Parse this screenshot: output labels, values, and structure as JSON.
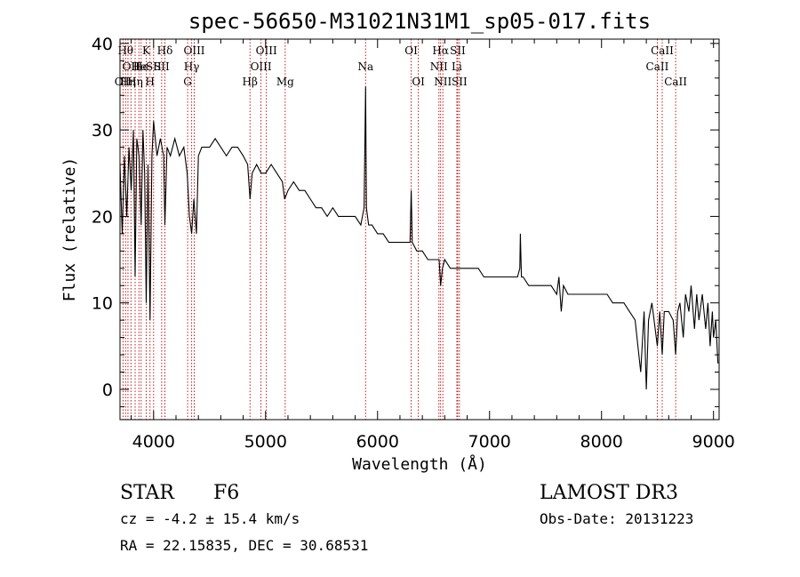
{
  "chart_data": {
    "type": "line",
    "title": "spec-56650-M31021N31M1_sp05-017.fits",
    "xlabel": "Wavelength (Å)",
    "ylabel": "Flux (relative)",
    "xlim": [
      3700,
      9050
    ],
    "ylim": [
      -3.5,
      40.5
    ],
    "xticks": [
      4000,
      5000,
      6000,
      7000,
      8000,
      9000
    ],
    "yticks": [
      0,
      10,
      20,
      30,
      40
    ],
    "series": [
      {
        "name": "spectrum",
        "points": [
          [
            3700,
            26
          ],
          [
            3720,
            18
          ],
          [
            3740,
            27
          ],
          [
            3760,
            20
          ],
          [
            3780,
            28
          ],
          [
            3800,
            23
          ],
          [
            3820,
            30
          ],
          [
            3835,
            13
          ],
          [
            3850,
            29
          ],
          [
            3870,
            27
          ],
          [
            3889,
            19
          ],
          [
            3905,
            30
          ],
          [
            3920,
            25
          ],
          [
            3934,
            10
          ],
          [
            3950,
            26
          ],
          [
            3968,
            8
          ],
          [
            3985,
            27
          ],
          [
            4000,
            31
          ],
          [
            4030,
            27
          ],
          [
            4060,
            29
          ],
          [
            4090,
            27
          ],
          [
            4101,
            19
          ],
          [
            4120,
            28
          ],
          [
            4150,
            27
          ],
          [
            4190,
            29
          ],
          [
            4230,
            27
          ],
          [
            4270,
            28
          ],
          [
            4300,
            25
          ],
          [
            4320,
            20
          ],
          [
            4340,
            18
          ],
          [
            4360,
            22
          ],
          [
            4383,
            18
          ],
          [
            4400,
            27
          ],
          [
            4430,
            28
          ],
          [
            4470,
            28
          ],
          [
            4500,
            28
          ],
          [
            4550,
            29
          ],
          [
            4600,
            28
          ],
          [
            4650,
            27
          ],
          [
            4700,
            28
          ],
          [
            4750,
            28
          ],
          [
            4800,
            27
          ],
          [
            4840,
            26
          ],
          [
            4861,
            22
          ],
          [
            4880,
            25
          ],
          [
            4920,
            26
          ],
          [
            4960,
            25
          ],
          [
            5000,
            25
          ],
          [
            5050,
            26
          ],
          [
            5100,
            25
          ],
          [
            5150,
            24
          ],
          [
            5170,
            22
          ],
          [
            5200,
            23
          ],
          [
            5250,
            24
          ],
          [
            5300,
            23
          ],
          [
            5350,
            23
          ],
          [
            5400,
            22
          ],
          [
            5450,
            21
          ],
          [
            5500,
            21
          ],
          [
            5550,
            20
          ],
          [
            5600,
            21
          ],
          [
            5650,
            20
          ],
          [
            5700,
            20
          ],
          [
            5750,
            20
          ],
          [
            5800,
            20
          ],
          [
            5850,
            19
          ],
          [
            5880,
            21
          ],
          [
            5893,
            35
          ],
          [
            5900,
            21
          ],
          [
            5920,
            19
          ],
          [
            5950,
            19
          ],
          [
            6000,
            18
          ],
          [
            6050,
            18
          ],
          [
            6100,
            17
          ],
          [
            6150,
            17
          ],
          [
            6200,
            17
          ],
          [
            6250,
            17
          ],
          [
            6290,
            17
          ],
          [
            6300,
            23
          ],
          [
            6310,
            17
          ],
          [
            6350,
            16
          ],
          [
            6400,
            16
          ],
          [
            6450,
            15
          ],
          [
            6500,
            15
          ],
          [
            6550,
            15
          ],
          [
            6563,
            12
          ],
          [
            6580,
            14
          ],
          [
            6600,
            15
          ],
          [
            6650,
            14
          ],
          [
            6700,
            14
          ],
          [
            6750,
            14
          ],
          [
            6800,
            14
          ],
          [
            6850,
            14
          ],
          [
            6900,
            14
          ],
          [
            6950,
            13
          ],
          [
            7000,
            13
          ],
          [
            7050,
            13
          ],
          [
            7100,
            13
          ],
          [
            7150,
            13
          ],
          [
            7200,
            13
          ],
          [
            7250,
            13
          ],
          [
            7270,
            14
          ],
          [
            7275,
            18
          ],
          [
            7285,
            13
          ],
          [
            7300,
            13
          ],
          [
            7350,
            12
          ],
          [
            7400,
            12
          ],
          [
            7450,
            12
          ],
          [
            7500,
            12
          ],
          [
            7550,
            12
          ],
          [
            7600,
            11
          ],
          [
            7620,
            13
          ],
          [
            7640,
            9
          ],
          [
            7660,
            12
          ],
          [
            7700,
            11
          ],
          [
            7750,
            11
          ],
          [
            7800,
            11
          ],
          [
            7850,
            11
          ],
          [
            7900,
            11
          ],
          [
            7950,
            11
          ],
          [
            8000,
            11
          ],
          [
            8050,
            11
          ],
          [
            8100,
            10
          ],
          [
            8150,
            10
          ],
          [
            8200,
            10
          ],
          [
            8250,
            9
          ],
          [
            8300,
            8
          ],
          [
            8350,
            2
          ],
          [
            8380,
            9
          ],
          [
            8400,
            0
          ],
          [
            8420,
            8
          ],
          [
            8450,
            10
          ],
          [
            8498,
            5
          ],
          [
            8520,
            9
          ],
          [
            8542,
            4
          ],
          [
            8560,
            9
          ],
          [
            8600,
            9
          ],
          [
            8640,
            8
          ],
          [
            8662,
            4
          ],
          [
            8680,
            9
          ],
          [
            8700,
            10
          ],
          [
            8730,
            6
          ],
          [
            8750,
            11
          ],
          [
            8780,
            9
          ],
          [
            8800,
            12
          ],
          [
            8830,
            7
          ],
          [
            8850,
            11
          ],
          [
            8870,
            8
          ],
          [
            8900,
            11
          ],
          [
            8930,
            7
          ],
          [
            8950,
            10
          ],
          [
            8970,
            5
          ],
          [
            8990,
            9
          ],
          [
            9000,
            6
          ],
          [
            9020,
            8
          ],
          [
            9040,
            3
          ]
        ]
      }
    ],
    "spectral_lines": [
      {
        "wave": 3727,
        "label": "OII",
        "row": 2
      },
      {
        "wave": 3750,
        "label": "Hθ",
        "row": 0
      },
      {
        "wave": 3771,
        "label": "Hη",
        "row": 2
      },
      {
        "wave": 3798,
        "label": "OII",
        "row": 1
      },
      {
        "wave": 3835,
        "label": "Hη",
        "row": 2
      },
      {
        "wave": 3869,
        "label": "He",
        "row": 1
      },
      {
        "wave": 3889,
        "label": "He",
        "row": 1
      },
      {
        "wave": 3934,
        "label": "K",
        "row": 0
      },
      {
        "wave": 3968,
        "label": "H",
        "row": 2
      },
      {
        "wave": 4000,
        "label": "SII",
        "row": 1
      },
      {
        "wave": 4072,
        "label": "SII",
        "row": 1
      },
      {
        "wave": 4101,
        "label": "Hδ",
        "row": 0
      },
      {
        "wave": 4304,
        "label": "G",
        "row": 2
      },
      {
        "wave": 4340,
        "label": "Hγ",
        "row": 1
      },
      {
        "wave": 4363,
        "label": "OIII",
        "row": 0
      },
      {
        "wave": 4861,
        "label": "Hβ",
        "row": 2
      },
      {
        "wave": 4959,
        "label": "OIII",
        "row": 1
      },
      {
        "wave": 5007,
        "label": "OIII",
        "row": 0
      },
      {
        "wave": 5175,
        "label": "Mg",
        "row": 2
      },
      {
        "wave": 5893,
        "label": "Na",
        "row": 1
      },
      {
        "wave": 6300,
        "label": "OI",
        "row": 0
      },
      {
        "wave": 6364,
        "label": "OI",
        "row": 2
      },
      {
        "wave": 6548,
        "label": "NII",
        "row": 1
      },
      {
        "wave": 6563,
        "label": "Hα",
        "row": 0
      },
      {
        "wave": 6583,
        "label": "NII",
        "row": 2
      },
      {
        "wave": 6708,
        "label": "Li",
        "row": 1
      },
      {
        "wave": 6716,
        "label": "SII",
        "row": 0
      },
      {
        "wave": 6731,
        "label": "SII",
        "row": 2
      },
      {
        "wave": 8498,
        "label": "CaII",
        "row": 1
      },
      {
        "wave": 8542,
        "label": "CaII",
        "row": 0
      },
      {
        "wave": 8662,
        "label": "CaII",
        "row": 2
      }
    ]
  },
  "info": {
    "class": "STAR",
    "subclass": "F6",
    "survey": "LAMOST DR3",
    "cz": "cz = -4.2 ± 15.4 km/s",
    "obs_date": "Obs-Date: 20131223",
    "coords": "RA =  22.15835, DEC =  30.68531"
  }
}
